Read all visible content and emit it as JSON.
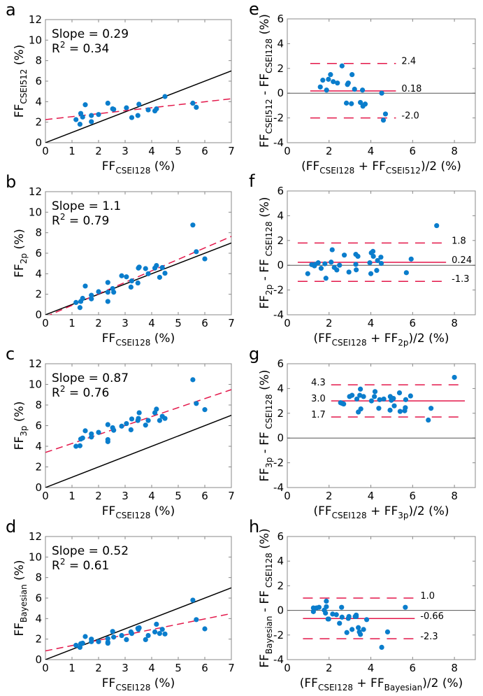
{
  "colors": {
    "points": "#0a7dcc",
    "fit": "#e3174a",
    "identity": "#000000",
    "zero": "#555555",
    "axis": "#888888"
  },
  "chart_data": [
    {
      "id": "a",
      "type": "scatter",
      "letter": "a",
      "xlabel": {
        "main": "FF",
        "sub": "CSEI128",
        "tail": " (%)"
      },
      "ylabel": {
        "main": "FF",
        "sub": "CSEI512",
        "tail": " (%)"
      },
      "xlim": [
        0,
        7
      ],
      "ylim": [
        0,
        12
      ],
      "xticks": [
        0,
        1,
        2,
        3,
        4,
        5,
        6,
        7
      ],
      "yticks": [
        0,
        2,
        4,
        6,
        8,
        10,
        12
      ],
      "annotation": {
        "slope_text": "Slope = 0.29",
        "r2_prefix": "R",
        "r2_suffix": " = 0.34"
      },
      "identity_line": true,
      "fit": {
        "slope": 0.29,
        "intercept": 2.25
      },
      "points": [
        [
          1.15,
          2.25
        ],
        [
          1.3,
          1.8
        ],
        [
          1.33,
          2.85
        ],
        [
          1.4,
          2.5
        ],
        [
          1.5,
          3.7
        ],
        [
          1.73,
          2.65
        ],
        [
          1.73,
          2.05
        ],
        [
          2.0,
          2.75
        ],
        [
          2.35,
          3.85
        ],
        [
          2.53,
          3.3
        ],
        [
          2.57,
          3.25
        ],
        [
          3.05,
          3.4
        ],
        [
          3.25,
          2.45
        ],
        [
          3.48,
          2.65
        ],
        [
          3.52,
          3.75
        ],
        [
          3.87,
          3.2
        ],
        [
          4.12,
          3.1
        ],
        [
          4.18,
          3.3
        ],
        [
          4.5,
          4.5
        ],
        [
          5.55,
          3.85
        ],
        [
          5.68,
          3.45
        ]
      ]
    },
    {
      "id": "e",
      "type": "scatter",
      "letter": "e",
      "xlabel": {
        "pre": "(FF",
        "sub1": "CSEI128",
        "mid": " + FF",
        "sub2": "CSEI512",
        "tail": ")/2 (%)"
      },
      "ylabel": {
        "main": "FF",
        "sub": "CSEI512",
        "mid": " - FF",
        "sub2": "CSEI128",
        "tail": " (%)"
      },
      "xlim": [
        0,
        9
      ],
      "ylim": [
        -4,
        6
      ],
      "xticks": [
        0,
        2,
        4,
        6,
        8
      ],
      "yticks": [
        -4,
        -2,
        0,
        2,
        4,
        6
      ],
      "zero_line": true,
      "limits": {
        "upper": 2.4,
        "mean": 0.18,
        "lower": -2.0,
        "x_range": [
          1.1,
          5.2
        ],
        "labels": [
          "2.4",
          "0.18",
          "-2.0"
        ],
        "label_side": "right"
      },
      "points": [
        [
          1.58,
          0.5
        ],
        [
          1.7,
          1.05
        ],
        [
          1.88,
          0.25
        ],
        [
          1.97,
          1.12
        ],
        [
          2.07,
          1.5
        ],
        [
          2.2,
          0.93
        ],
        [
          2.4,
          0.82
        ],
        [
          2.62,
          2.2
        ],
        [
          2.83,
          -0.8
        ],
        [
          2.88,
          0.7
        ],
        [
          2.92,
          0.82
        ],
        [
          3.07,
          -0.85
        ],
        [
          3.1,
          1.5
        ],
        [
          3.22,
          0.32
        ],
        [
          3.5,
          -0.75
        ],
        [
          3.6,
          0.25
        ],
        [
          3.62,
          -1.05
        ],
        [
          3.73,
          -0.88
        ],
        [
          4.52,
          0.0
        ],
        [
          4.6,
          -2.18
        ],
        [
          4.7,
          -1.68
        ]
      ]
    },
    {
      "id": "b",
      "type": "scatter",
      "letter": "b",
      "xlabel": {
        "main": "FF",
        "sub": "CSEI128",
        "tail": " (%)"
      },
      "ylabel": {
        "main": "FF",
        "sub": "2p",
        "tail": " (%)"
      },
      "xlim": [
        0,
        7
      ],
      "ylim": [
        0,
        12
      ],
      "xticks": [
        0,
        1,
        2,
        3,
        4,
        5,
        6,
        7
      ],
      "yticks": [
        0,
        2,
        4,
        6,
        8,
        10,
        12
      ],
      "annotation": {
        "slope_text": "Slope = 1.1",
        "r2_prefix": "R",
        "r2_suffix": " = 0.79"
      },
      "identity_line": true,
      "fit": {
        "slope": 1.12,
        "intercept": -0.2
      },
      "points": [
        [
          1.15,
          1.2
        ],
        [
          1.3,
          0.7
        ],
        [
          1.33,
          1.3
        ],
        [
          1.4,
          1.6
        ],
        [
          1.5,
          2.8
        ],
        [
          1.73,
          1.9
        ],
        [
          1.73,
          1.55
        ],
        [
          2.0,
          2.25
        ],
        [
          2.35,
          3.15
        ],
        [
          2.35,
          2.2
        ],
        [
          2.35,
          1.3
        ],
        [
          2.53,
          2.55
        ],
        [
          2.57,
          2.2
        ],
        [
          2.87,
          3.8
        ],
        [
          3.05,
          3.7
        ],
        [
          3.22,
          2.7
        ],
        [
          3.25,
          3.3
        ],
        [
          3.48,
          3.1
        ],
        [
          3.5,
          4.55
        ],
        [
          3.53,
          4.65
        ],
        [
          3.77,
          4.5
        ],
        [
          3.87,
          4.0
        ],
        [
          4.12,
          4.55
        ],
        [
          4.18,
          4.8
        ],
        [
          4.4,
          4.6
        ],
        [
          4.3,
          3.65
        ],
        [
          4.5,
          4.05
        ],
        [
          5.55,
          8.75
        ],
        [
          5.68,
          6.15
        ],
        [
          6.0,
          5.45
        ]
      ]
    },
    {
      "id": "f",
      "type": "scatter",
      "letter": "f",
      "xlabel": {
        "pre": "(FF",
        "sub1": "CSEI128",
        "mid": " + FF",
        "sub2": "2p",
        "tail": ")/2 (%)"
      },
      "ylabel": {
        "main": "FF",
        "sub": "2p",
        "mid": "- FF",
        "sub2": " CSEI128",
        "tail": " (%)"
      },
      "xlim": [
        0,
        9
      ],
      "ylim": [
        -4,
        6
      ],
      "xticks": [
        0,
        2,
        4,
        6,
        8
      ],
      "yticks": [
        -4,
        -2,
        0,
        2,
        4,
        6
      ],
      "zero_line": true,
      "limits": {
        "upper": 1.8,
        "mean": 0.24,
        "lower": -1.3,
        "x_range": [
          0.5,
          7.6
        ],
        "labels": [
          "1.8",
          "0.24",
          "-1.3"
        ],
        "label_side": "right"
      },
      "points": [
        [
          0.98,
          -0.68
        ],
        [
          1.17,
          0.05
        ],
        [
          1.3,
          -0.05
        ],
        [
          1.33,
          0.07
        ],
        [
          1.48,
          0.2
        ],
        [
          1.62,
          -0.25
        ],
        [
          1.8,
          0.12
        ],
        [
          1.85,
          -1.05
        ],
        [
          2.1,
          0.25
        ],
        [
          2.15,
          1.25
        ],
        [
          2.25,
          -0.18
        ],
        [
          2.37,
          -0.38
        ],
        [
          2.5,
          0.0
        ],
        [
          2.73,
          0.82
        ],
        [
          2.95,
          -0.55
        ],
        [
          3.28,
          0.88
        ],
        [
          3.28,
          0.07
        ],
        [
          3.3,
          -0.37
        ],
        [
          3.38,
          0.72
        ],
        [
          3.95,
          0.2
        ],
        [
          4.0,
          -0.68
        ],
        [
          4.02,
          1.0
        ],
        [
          4.1,
          1.12
        ],
        [
          4.12,
          0.72
        ],
        [
          4.28,
          -0.42
        ],
        [
          4.32,
          0.38
        ],
        [
          4.48,
          0.65
        ],
        [
          4.5,
          0.15
        ],
        [
          5.7,
          -0.6
        ],
        [
          5.93,
          0.5
        ],
        [
          7.15,
          3.2
        ]
      ]
    },
    {
      "id": "c",
      "type": "scatter",
      "letter": "c",
      "xlabel": {
        "main": "FF",
        "sub": "CSEI128",
        "tail": " (%)"
      },
      "ylabel": {
        "main": "FF",
        "sub": "3p",
        "tail": " (%)"
      },
      "xlim": [
        0,
        7
      ],
      "ylim": [
        0,
        12
      ],
      "xticks": [
        0,
        1,
        2,
        3,
        4,
        5,
        6,
        7
      ],
      "yticks": [
        0,
        2,
        4,
        6,
        8,
        10,
        12
      ],
      "annotation": {
        "slope_text": "Slope = 0.87",
        "r2_prefix": "R",
        "r2_suffix": " = 0.76"
      },
      "identity_line": true,
      "fit": {
        "slope": 0.87,
        "intercept": 3.4
      },
      "points": [
        [
          1.15,
          4.0
        ],
        [
          1.3,
          4.05
        ],
        [
          1.33,
          4.7
        ],
        [
          1.4,
          4.8
        ],
        [
          1.5,
          5.5
        ],
        [
          1.73,
          5.2
        ],
        [
          1.73,
          4.9
        ],
        [
          2.0,
          5.35
        ],
        [
          2.35,
          6.1
        ],
        [
          2.35,
          4.65
        ],
        [
          2.35,
          4.45
        ],
        [
          2.53,
          5.8
        ],
        [
          2.57,
          5.55
        ],
        [
          2.87,
          5.95
        ],
        [
          3.05,
          6.2
        ],
        [
          3.22,
          5.6
        ],
        [
          3.25,
          6.65
        ],
        [
          3.48,
          6.5
        ],
        [
          3.5,
          6.7
        ],
        [
          3.53,
          7.25
        ],
        [
          3.77,
          6.05
        ],
        [
          3.87,
          6.5
        ],
        [
          4.12,
          7.25
        ],
        [
          4.18,
          7.6
        ],
        [
          4.4,
          6.9
        ],
        [
          4.3,
          6.5
        ],
        [
          4.5,
          6.7
        ],
        [
          5.55,
          10.45
        ],
        [
          5.68,
          8.15
        ],
        [
          6.0,
          7.55
        ]
      ]
    },
    {
      "id": "g",
      "type": "scatter",
      "letter": "g",
      "xlabel": {
        "pre": "(FF",
        "sub1": "CSEI128",
        "mid": " + FF",
        "sub2": "3p",
        "tail": ")/2 (%)"
      },
      "ylabel": {
        "main": "FF",
        "sub": "3p",
        "mid": "- FF",
        "sub2": " CSEI128",
        "tail": " (%)"
      },
      "xlim": [
        0,
        9
      ],
      "ylim": [
        -4,
        6
      ],
      "xticks": [
        0,
        2,
        4,
        6,
        8
      ],
      "yticks": [
        -4,
        -2,
        0,
        2,
        4,
        6
      ],
      "zero_line": true,
      "limits": {
        "upper": 4.3,
        "mean": 3.0,
        "lower": 1.7,
        "x_range": [
          2.1,
          8.5
        ],
        "labels": [
          "4.3",
          "3.0",
          "1.7"
        ],
        "label_side": "left"
      },
      "points": [
        [
          2.55,
          2.85
        ],
        [
          2.62,
          2.8
        ],
        [
          2.7,
          2.75
        ],
        [
          2.98,
          3.35
        ],
        [
          3.1,
          3.45
        ],
        [
          3.33,
          3.15
        ],
        [
          3.4,
          2.1
        ],
        [
          3.47,
          3.45
        ],
        [
          3.5,
          3.95
        ],
        [
          3.52,
          2.35
        ],
        [
          3.65,
          3.35
        ],
        [
          4.03,
          3.0
        ],
        [
          4.17,
          3.35
        ],
        [
          4.2,
          3.75
        ],
        [
          4.38,
          2.4
        ],
        [
          4.42,
          3.1
        ],
        [
          4.62,
          3.15
        ],
        [
          4.92,
          2.25
        ],
        [
          4.93,
          3.35
        ],
        [
          4.98,
          3.05
        ],
        [
          5.08,
          3.2
        ],
        [
          5.12,
          2.6
        ],
        [
          5.37,
          3.65
        ],
        [
          5.4,
          2.15
        ],
        [
          5.62,
          2.2
        ],
        [
          5.65,
          2.45
        ],
        [
          5.67,
          3.1
        ],
        [
          5.9,
          3.4
        ],
        [
          6.75,
          1.45
        ],
        [
          6.88,
          2.4
        ],
        [
          8.0,
          4.9
        ]
      ]
    },
    {
      "id": "d",
      "type": "scatter",
      "letter": "d",
      "xlabel": {
        "main": "FF",
        "sub": "CSEI128",
        "tail": " (%)"
      },
      "ylabel": {
        "main": "FF",
        "sub": "Bayesian",
        "tail": " (%)"
      },
      "xlim": [
        0,
        7
      ],
      "ylim": [
        0,
        12
      ],
      "xticks": [
        0,
        1,
        2,
        3,
        4,
        5,
        6,
        7
      ],
      "yticks": [
        0,
        2,
        4,
        6,
        8,
        10,
        12
      ],
      "annotation": {
        "slope_text": "Slope = 0.52",
        "r2_prefix": "R",
        "r2_suffix": "  = 0.61"
      },
      "identity_line": true,
      "fit": {
        "slope": 0.52,
        "intercept": 0.85
      },
      "points": [
        [
          1.15,
          1.4
        ],
        [
          1.3,
          1.2
        ],
        [
          1.33,
          1.55
        ],
        [
          1.4,
          1.6
        ],
        [
          1.5,
          2.25
        ],
        [
          1.73,
          2.0
        ],
        [
          1.73,
          1.75
        ],
        [
          2.0,
          1.75
        ],
        [
          2.35,
          2.05
        ],
        [
          2.35,
          1.7
        ],
        [
          2.35,
          1.6
        ],
        [
          2.53,
          2.75
        ],
        [
          2.57,
          2.2
        ],
        [
          2.87,
          2.35
        ],
        [
          3.05,
          1.95
        ],
        [
          3.22,
          2.7
        ],
        [
          3.25,
          2.55
        ],
        [
          3.48,
          3.05
        ],
        [
          3.5,
          2.95
        ],
        [
          3.53,
          3.1
        ],
        [
          3.77,
          1.95
        ],
        [
          3.87,
          2.35
        ],
        [
          4.12,
          2.7
        ],
        [
          4.18,
          3.45
        ],
        [
          4.3,
          2.55
        ],
        [
          4.4,
          2.95
        ],
        [
          4.5,
          2.5
        ],
        [
          5.55,
          5.8
        ],
        [
          5.68,
          3.9
        ],
        [
          6.0,
          3.0
        ]
      ]
    },
    {
      "id": "h",
      "type": "scatter",
      "letter": "h",
      "xlabel": {
        "pre": "(FF",
        "sub1": "CSEI128",
        "mid": " + FF",
        "sub2": "Bayesian",
        "tail": ")/2 (%)"
      },
      "ylabel": {
        "main": "FF",
        "sub": "Bayesian",
        "mid": "- FF",
        "sub2": " CSEI128",
        "tail": " (%)"
      },
      "xlim": [
        0,
        9
      ],
      "ylim": [
        -4,
        6
      ],
      "xticks": [
        0,
        2,
        4,
        6,
        8
      ],
      "yticks": [
        -4,
        -2,
        0,
        2,
        4,
        6
      ],
      "zero_line": true,
      "limits": {
        "upper": 1.0,
        "mean": -0.66,
        "lower": -2.3,
        "x_range": [
          0.75,
          6.1
        ],
        "labels": [
          "1.0",
          "-0.66",
          "-2.3"
        ],
        "label_side": "right"
      },
      "points": [
        [
          1.25,
          0.2
        ],
        [
          1.25,
          -0.1
        ],
        [
          1.4,
          0.2
        ],
        [
          1.52,
          0.25
        ],
        [
          1.77,
          0.02
        ],
        [
          1.83,
          -0.22
        ],
        [
          1.87,
          0.75
        ],
        [
          1.87,
          0.3
        ],
        [
          1.95,
          -0.7
        ],
        [
          1.98,
          -0.7
        ],
        [
          2.17,
          -0.3
        ],
        [
          2.35,
          -0.35
        ],
        [
          2.5,
          -1.05
        ],
        [
          2.6,
          0.25
        ],
        [
          2.62,
          -0.55
        ],
        [
          2.85,
          -1.8
        ],
        [
          2.92,
          -0.65
        ],
        [
          2.95,
          -0.5
        ],
        [
          3.1,
          -1.55
        ],
        [
          3.25,
          -0.5
        ],
        [
          3.3,
          -0.38
        ],
        [
          3.3,
          -0.5
        ],
        [
          3.4,
          -1.4
        ],
        [
          3.45,
          -1.75
        ],
        [
          3.5,
          -1.95
        ],
        [
          3.65,
          -1.55
        ],
        [
          3.8,
          -0.75
        ],
        [
          4.52,
          -3.0
        ],
        [
          4.8,
          -1.75
        ],
        [
          5.65,
          0.25
        ]
      ]
    }
  ]
}
